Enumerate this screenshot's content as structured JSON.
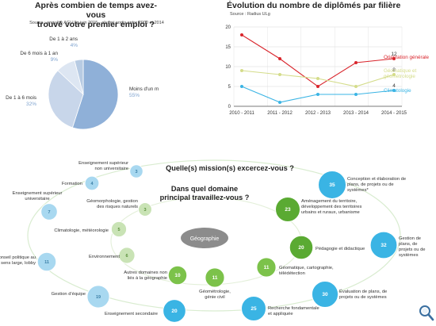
{
  "pie": {
    "title_line1": "Après combien de temps avez-vous",
    "title_line2": "trouvé votre premier emploi ?",
    "source": "Source : enquête AGLUlg juin 2015 - alumni sortis entre 2000 et 2014",
    "colors": [
      "#8fb0d8",
      "#c8d6ea",
      "#dde6f2",
      "#b7cbe3"
    ]
  },
  "line": {
    "title": "Évolution du nombre de diplômés par filière",
    "source": "Source : Radius ULg"
  },
  "chart_data": [
    {
      "type": "pie",
      "slices": [
        {
          "label": "Moins d'un mois",
          "value": 55,
          "value_label": "55%",
          "color": "#8fb0d8"
        },
        {
          "label": "De 1 à 6 mois",
          "value": 32,
          "value_label": "32%",
          "color": "#c8d6ea"
        },
        {
          "label": "De 6 mois à 1 an",
          "value": 9,
          "value_label": "9%",
          "color": "#dde6f2"
        },
        {
          "label": "De 1 à 2 ans",
          "value": 4,
          "value_label": "4%",
          "color": "#b7cbe3"
        }
      ]
    },
    {
      "type": "line",
      "categories": [
        "2010 - 2011",
        "2011 - 2012",
        "2012 - 2013",
        "2013 - 2014",
        "2014 - 2015"
      ],
      "ylim": [
        0,
        20
      ],
      "yticks": [
        0,
        5,
        10,
        15,
        20
      ],
      "grid": true,
      "series": [
        {
          "name": "Orientation générale",
          "color": "#d9252c",
          "values": [
            18,
            12,
            5,
            11,
            12
          ],
          "end_label": "12"
        },
        {
          "name": "Géomatique et géométrologie",
          "color": "#d4dc8a",
          "values": [
            9,
            8,
            7,
            5,
            8
          ],
          "end_label": "8"
        },
        {
          "name": "Climatologie",
          "color": "#3ab4e4",
          "values": [
            5,
            1,
            3,
            3,
            4
          ],
          "end_label": "4"
        }
      ]
    },
    {
      "type": "bubble",
      "center_label": "Géographie",
      "question_missions": "Quelle(s) mission(s) excercez-vous ?",
      "question_domain_line1": "Dans quel domaine",
      "question_domain_line2": "principal travaillez-vous ?",
      "missions": [
        {
          "label": "Conception et élaboration de plans, de projets ou de systèmes*",
          "value": 35
        },
        {
          "label": "Gestion de plans, de projets ou de systèmes",
          "value": 32
        },
        {
          "label": "Évaluation de plans, de projets ou de systèmes",
          "value": 30
        },
        {
          "label": "Recherche fondamentale et appliquée",
          "value": 25
        },
        {
          "label": "Enseignement secondaire",
          "value": 20
        },
        {
          "label": "Gestion d'équipe",
          "value": 19
        },
        {
          "label": "Conseil politique au sens large, lobby",
          "value": 11
        },
        {
          "label": "Enseignement supérieur universitaire",
          "value": 7
        },
        {
          "label": "Formation",
          "value": 4
        },
        {
          "label": "Enseignement supérieur non universitaire",
          "value": 3
        }
      ],
      "domains": [
        {
          "label": "Aménagement du territoire, développement des territoires urbains et ruraux, urbanisme",
          "value": 23
        },
        {
          "label": "Pédagogie et didactique",
          "value": 20
        },
        {
          "label": "Géomatique, cartographie, télédétection",
          "value": 11
        },
        {
          "label": "Géométrologie, génie civil",
          "value": 11
        },
        {
          "label": "Autres domaines non liés à la géographie",
          "value": 10
        },
        {
          "label": "Environnement",
          "value": 6
        },
        {
          "label": "Climatologie, météorologie",
          "value": 5
        },
        {
          "label": "Géomorphologie, gestion des risques naturels",
          "value": 3
        }
      ]
    }
  ]
}
